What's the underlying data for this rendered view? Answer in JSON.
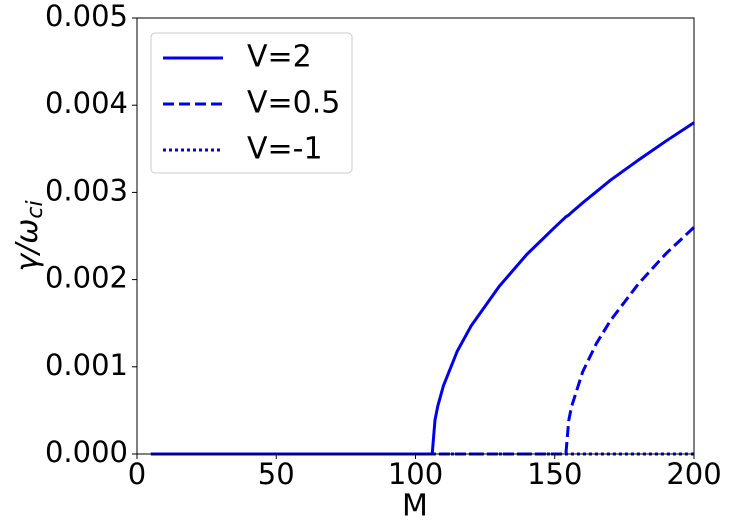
{
  "chart_data": {
    "type": "line",
    "xlabel": "M",
    "ylabel": {
      "main": "γ/ω",
      "sub": "ci"
    },
    "x": [
      5,
      20,
      40,
      60,
      80,
      100,
      106,
      107,
      108,
      110,
      115,
      120,
      130,
      140,
      150,
      154,
      155,
      156,
      160,
      165,
      170,
      180,
      190,
      200
    ],
    "series": [
      {
        "name": "V=2",
        "color": "#0000ee",
        "linestyle": "solid",
        "values": [
          0,
          0,
          0,
          0,
          0,
          0,
          0,
          0.00039,
          0.00055,
          0.00078,
          0.00118,
          0.00147,
          0.00192,
          0.00229,
          0.0026,
          0.00272,
          0.00274,
          0.00277,
          0.00288,
          0.00301,
          0.00314,
          0.00337,
          0.00359,
          0.0038
        ]
      },
      {
        "name": "V=0.5",
        "color": "#0000ee",
        "linestyle": "dashed",
        "values": [
          0,
          0,
          0,
          0,
          0,
          0,
          0,
          0,
          0,
          0,
          0,
          0,
          0,
          0,
          0,
          0,
          0.00038,
          0.00054,
          0.00094,
          0.00127,
          0.00153,
          0.00195,
          0.0023,
          0.0026
        ]
      },
      {
        "name": "V=-1",
        "color": "#0000ee",
        "linestyle": "dotted",
        "values": [
          0,
          0,
          0,
          0,
          0,
          0,
          0,
          0,
          0,
          0,
          0,
          0,
          0,
          0,
          0,
          0,
          0,
          0,
          0,
          0,
          0,
          0,
          0,
          0
        ]
      }
    ],
    "xlim": [
      0,
      200
    ],
    "xticks": [
      0,
      50,
      100,
      150,
      200
    ],
    "ylim": [
      0,
      0.005
    ],
    "yticks": [
      {
        "value": 0,
        "label": "0.000"
      },
      {
        "value": 0.001,
        "label": "0.001"
      },
      {
        "value": 0.002,
        "label": "0.002"
      },
      {
        "value": 0.003,
        "label": "0.003"
      },
      {
        "value": 0.004,
        "label": "0.004"
      },
      {
        "value": 0.005,
        "label": "0.005"
      }
    ],
    "legend": "upper left"
  }
}
